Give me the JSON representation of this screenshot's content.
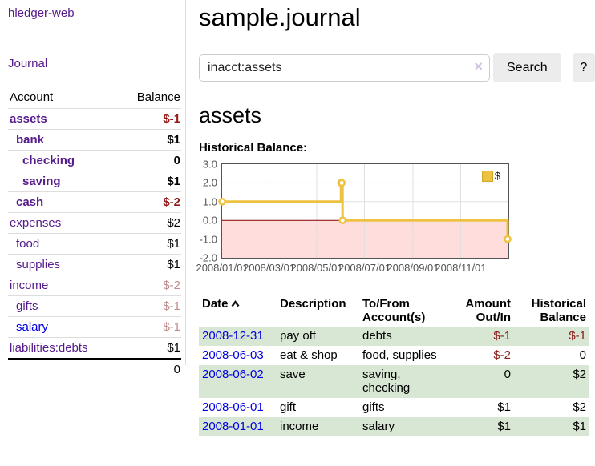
{
  "sidebar": {
    "app_title": "hledger-web",
    "journal_label": "Journal",
    "accounts": {
      "header_account": "Account",
      "header_balance": "Balance",
      "rows": [
        {
          "name": "assets",
          "indent": 1,
          "bold": true,
          "balance": "$-1",
          "balance_style": "neg-strong"
        },
        {
          "name": "bank",
          "indent": 2,
          "bold": true,
          "balance": "$1",
          "balance_style": ""
        },
        {
          "name": "checking",
          "indent": 3,
          "bold": true,
          "balance": "0",
          "balance_style": ""
        },
        {
          "name": "saving",
          "indent": 3,
          "bold": true,
          "balance": "$1",
          "balance_style": ""
        },
        {
          "name": "cash",
          "indent": 2,
          "bold": true,
          "balance": "$-2",
          "balance_style": "neg-strong"
        },
        {
          "name": "expenses",
          "indent": 1,
          "bold": false,
          "balance": "$2",
          "balance_style": ""
        },
        {
          "name": "food",
          "indent": 2,
          "bold": false,
          "balance": "$1",
          "balance_style": ""
        },
        {
          "name": "supplies",
          "indent": 2,
          "bold": false,
          "balance": "$1",
          "balance_style": ""
        },
        {
          "name": "income",
          "indent": 1,
          "bold": false,
          "balance": "$-2",
          "balance_style": "neg-muted"
        },
        {
          "name": "gifts",
          "indent": 2,
          "bold": false,
          "balance": "$-1",
          "balance_style": "neg-muted"
        },
        {
          "name": "salary",
          "indent": 2,
          "bold": false,
          "balance": "$-1",
          "balance_style": "neg-muted",
          "link_color": "blue"
        },
        {
          "name": "liabilities:debts",
          "indent": 1,
          "bold": false,
          "balance": "$1",
          "balance_style": ""
        }
      ],
      "total": "0"
    }
  },
  "main": {
    "title": "sample.journal",
    "search": {
      "value": "inacct:assets",
      "clear_icon": "×",
      "button_label": "Search",
      "help_label": "?"
    },
    "account_heading": "assets",
    "chart_label": "Historical Balance:"
  },
  "chart_data": {
    "type": "line",
    "step": true,
    "title": "Historical Balance:",
    "series": [
      {
        "name": "$",
        "color": "#edc240",
        "points": [
          [
            "2008-01-01",
            1
          ],
          [
            "2008-06-01",
            2
          ],
          [
            "2008-06-02",
            2
          ],
          [
            "2008-06-03",
            0
          ],
          [
            "2008-12-31",
            -1
          ]
        ]
      }
    ],
    "xlim": [
      "2008-01-01",
      "2008-12-31"
    ],
    "ylim": [
      -2,
      3
    ],
    "x_tick_labels": [
      "2008/01/01",
      "2008/03/01",
      "2008/05/01",
      "2008/07/01",
      "2008/09/01",
      "2008/11/01"
    ],
    "y_ticks": [
      3,
      2,
      1,
      0,
      -1,
      -2
    ],
    "y_tick_labels": [
      "3.0",
      "2.0",
      "1.0",
      "0.0",
      "-1.0",
      "-2.0"
    ],
    "grid": true,
    "legend_position": "top-right",
    "negative_region_color": "#ffdddd",
    "zero_line_color": "#800000",
    "gridline_color": "#e0e0e0"
  },
  "register": {
    "headers": [
      "Date",
      "Description",
      "To/From Account(s)",
      "Amount Out/In",
      "Historical Balance"
    ],
    "sort_column": "Date",
    "sort_direction": "ascending",
    "rows": [
      {
        "date": "2008-12-31",
        "description": "pay off",
        "accounts": "debts",
        "amount": "$-1",
        "amount_neg": true,
        "balance": "$-1",
        "balance_neg": true,
        "shaded": true
      },
      {
        "date": "2008-06-03",
        "description": "eat & shop",
        "accounts": "food, supplies",
        "amount": "$-2",
        "amount_neg": true,
        "balance": "0",
        "balance_neg": false,
        "shaded": false
      },
      {
        "date": "2008-06-02",
        "description": "save",
        "accounts": "saving, checking",
        "amount": "0",
        "amount_neg": false,
        "balance": "$2",
        "balance_neg": false,
        "shaded": true
      },
      {
        "date": "2008-06-01",
        "description": "gift",
        "accounts": "gifts",
        "amount": "$1",
        "amount_neg": false,
        "balance": "$2",
        "balance_neg": false,
        "shaded": false
      },
      {
        "date": "2008-01-01",
        "description": "income",
        "accounts": "salary",
        "amount": "$1",
        "amount_neg": false,
        "balance": "$1",
        "balance_neg": false,
        "shaded": true
      }
    ]
  },
  "colors": {
    "link_purple": "#551a8b",
    "link_blue": "#0000e6",
    "negative_strong": "#971616",
    "negative_muted": "#bd8c8c",
    "negative_table": "#8b1c1c",
    "row_green": "#d8e7d3",
    "series_gold": "#edc240",
    "below_zero_pink": "#ffdddd",
    "zero_line_red": "#800000"
  }
}
